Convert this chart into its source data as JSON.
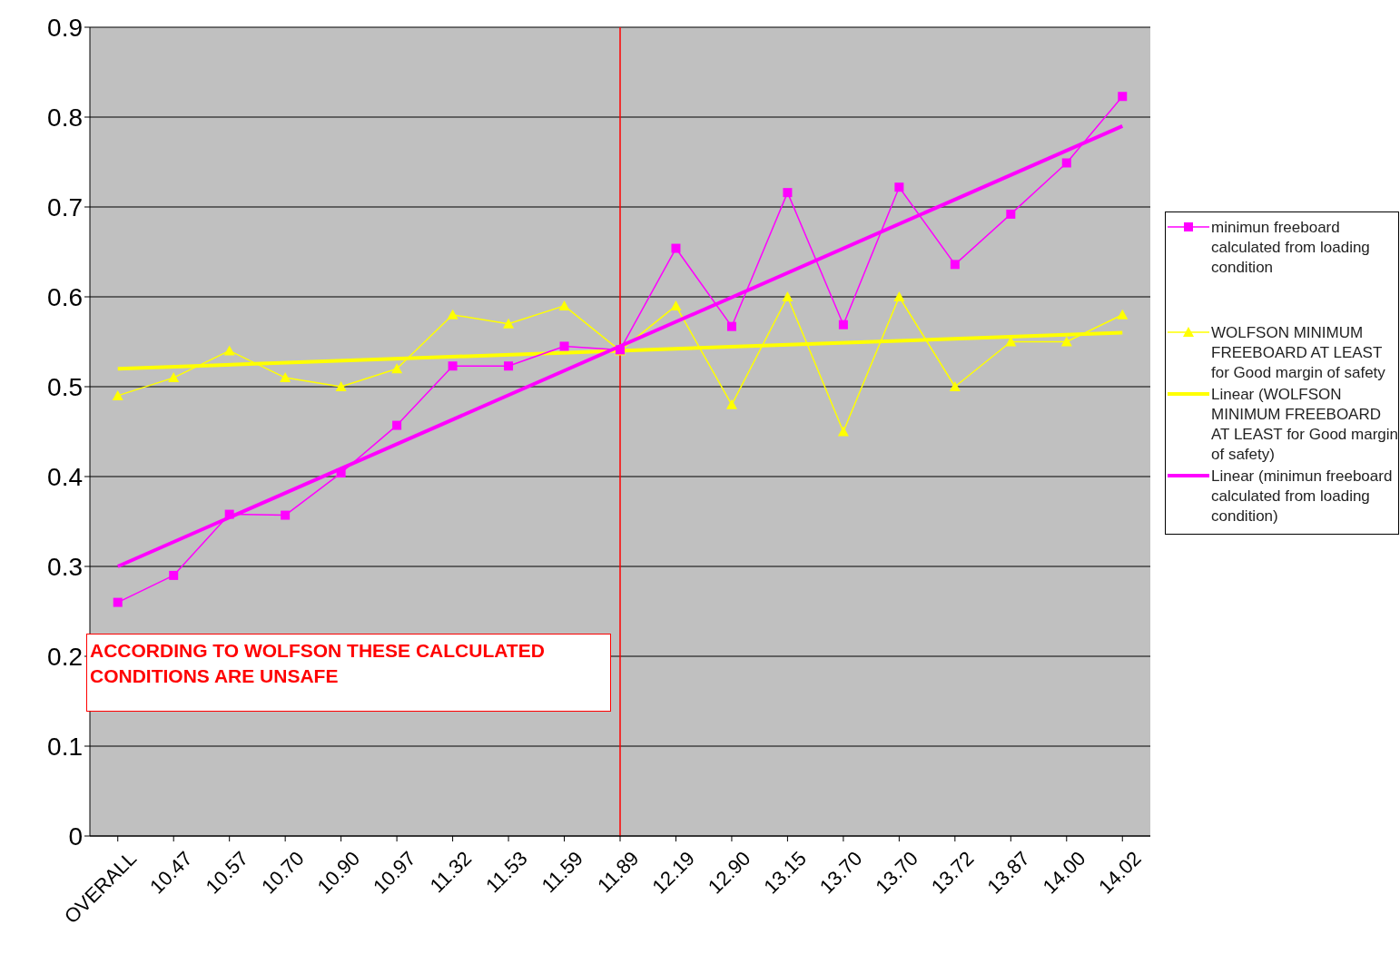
{
  "chart_data": {
    "type": "line",
    "categories": [
      "OVERALL",
      "10.47",
      "10.57",
      "10.70",
      "10.90",
      "10.97",
      "11.32",
      "11.53",
      "11.59",
      "11.89",
      "12.19",
      "12.90",
      "13.15",
      "13.70",
      "13.70",
      "13.72",
      "13.87",
      "14.00",
      "14.02"
    ],
    "series": [
      {
        "name": "minimun freeboard calculated from loading condition",
        "color": "#ff00ff",
        "marker": "square",
        "values": [
          0.26,
          0.29,
          0.358,
          0.357,
          0.404,
          0.457,
          0.523,
          0.523,
          0.545,
          0.541,
          0.654,
          0.567,
          0.716,
          0.569,
          0.722,
          0.636,
          0.692,
          0.749,
          0.823
        ]
      },
      {
        "name": "WOLFSON MINIMUM FREEBOARD AT LEAST for Good margin of safety",
        "color": "#ffff00",
        "marker": "triangle",
        "values": [
          0.49,
          0.51,
          0.54,
          0.51,
          0.5,
          0.52,
          0.58,
          0.57,
          0.59,
          0.54,
          0.59,
          0.48,
          0.6,
          0.45,
          0.6,
          0.5,
          0.55,
          0.55,
          0.58
        ]
      },
      {
        "name": "Linear (WOLFSON MINIMUM FREEBOARD AT LEAST for Good margin of safety)",
        "color": "#ffff00",
        "marker": "none",
        "x": [
          "OVERALL",
          "14.02"
        ],
        "values": [
          0.52,
          0.56
        ]
      },
      {
        "name": "Linear (minimun freeboard calculated from loading condition)",
        "color": "#ff00ff",
        "marker": "none",
        "x": [
          "OVERALL",
          "14.02"
        ],
        "values": [
          0.3,
          0.79
        ]
      }
    ],
    "ylim": [
      0,
      0.9
    ],
    "yticks": [
      {
        "value": 0,
        "label": "0"
      },
      0.1,
      0.2,
      0.3,
      0.4,
      0.5,
      0.6,
      0.7,
      0.8,
      0.9
    ],
    "grid": "y",
    "legend": "right",
    "ref_lines": [
      {
        "axis": "x",
        "value": "11.89",
        "color": "#ff0000"
      }
    ],
    "annotations": [
      "ACCORDING TO WOLFSON THESE CALCULATED CONDITIONS ARE UNSAFE"
    ]
  }
}
